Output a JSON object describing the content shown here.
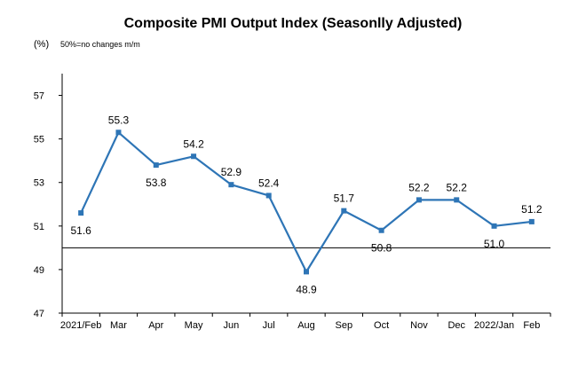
{
  "chart_data": {
    "type": "line",
    "title": "Composite PMI Output Index (Seasonlly Adjusted)",
    "ylabel": "(%)",
    "note": "50%=no changes  m/m",
    "categories": [
      "2021/Feb",
      "Mar",
      "Apr",
      "May",
      "Jun",
      "Jul",
      "Aug",
      "Sep",
      "Oct",
      "Nov",
      "Dec",
      "2022/Jan",
      "Feb"
    ],
    "series": [
      {
        "values": [
          51.6,
          55.3,
          53.8,
          54.2,
          52.9,
          52.4,
          48.9,
          51.7,
          50.8,
          52.2,
          52.2,
          51.0,
          51.2
        ]
      }
    ],
    "labels": [
      "51.6",
      "55.3",
      "53.8",
      "54.2",
      "52.9",
      "52.4",
      "48.9",
      "51.7",
      "50.8",
      "52.2",
      "52.2",
      "51.0",
      "51.2"
    ],
    "ylim": [
      47,
      58
    ],
    "yticks": [
      "47",
      "49",
      "51",
      "53",
      "55",
      "57"
    ],
    "baseline": 50,
    "line_color": "#2e75b6",
    "grid": false,
    "legend": "none"
  }
}
